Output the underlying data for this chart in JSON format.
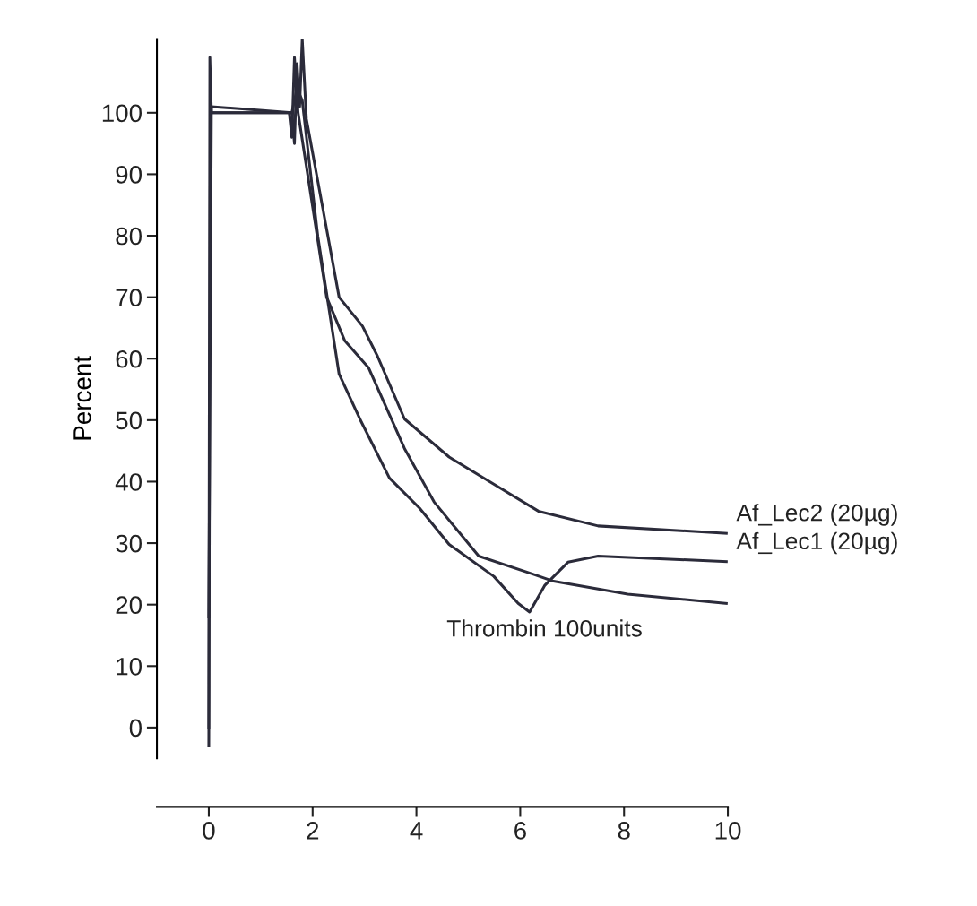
{
  "chart_data": {
    "type": "line",
    "ylabel": "Percent",
    "xlim": [
      -1,
      10
    ],
    "xticks": [
      0,
      2,
      4,
      6,
      8,
      10
    ],
    "ylim": [
      -5,
      112
    ],
    "yticks": [
      0,
      10,
      20,
      30,
      40,
      50,
      60,
      70,
      80,
      90,
      100
    ],
    "grid": false,
    "legend": false,
    "marker": "none",
    "line_style": "solid",
    "series": [
      {
        "name": "Af_Lec2 (20µg)",
        "color": "#2b2b3a",
        "x": [
          0,
          0.02,
          0.05,
          1.6,
          1.65,
          1.7,
          1.75,
          1.8,
          1.88,
          2.51,
          2.96,
          3.25,
          3.77,
          4.63,
          5.49,
          6.35,
          7.5,
          9.97
        ],
        "values": [
          0,
          109,
          100,
          100,
          95,
          108,
          101,
          112,
          99,
          70,
          65.3,
          60.4,
          50.2,
          44,
          39.6,
          35.2,
          32.8,
          31.6
        ]
      },
      {
        "name": "Af_Lec1 (20µg)",
        "color": "#2b2b3a",
        "x": [
          0,
          0.05,
          1.6,
          1.7,
          1.8,
          2.1,
          2.51,
          2.91,
          3.48,
          4.06,
          4.63,
          5.49,
          5.96,
          6.18,
          6.47,
          6.92,
          7.5,
          9.97
        ],
        "values": [
          18,
          101,
          100,
          104,
          102,
          79.9,
          57.5,
          50.2,
          40.6,
          35.7,
          29.8,
          24.6,
          20.2,
          18.8,
          23.1,
          26.9,
          27.9,
          27
        ]
      },
      {
        "color": "#2b2b3a",
        "x": [
          0,
          0.03,
          1.55,
          1.6,
          1.65,
          1.72,
          2.27,
          2.62,
          3.08,
          3.77,
          4.34,
          5.2,
          6.23,
          6.64,
          8.07,
          9.97
        ],
        "values": [
          -3,
          100,
          100,
          96,
          109,
          100,
          70,
          62.9,
          58.5,
          45.4,
          36.7,
          27.9,
          25,
          23.8,
          21.7,
          20.2
        ]
      }
    ],
    "annotations": [
      {
        "text": "Thrombin 100units",
        "x": 6.18,
        "y": 18.8
      }
    ]
  }
}
